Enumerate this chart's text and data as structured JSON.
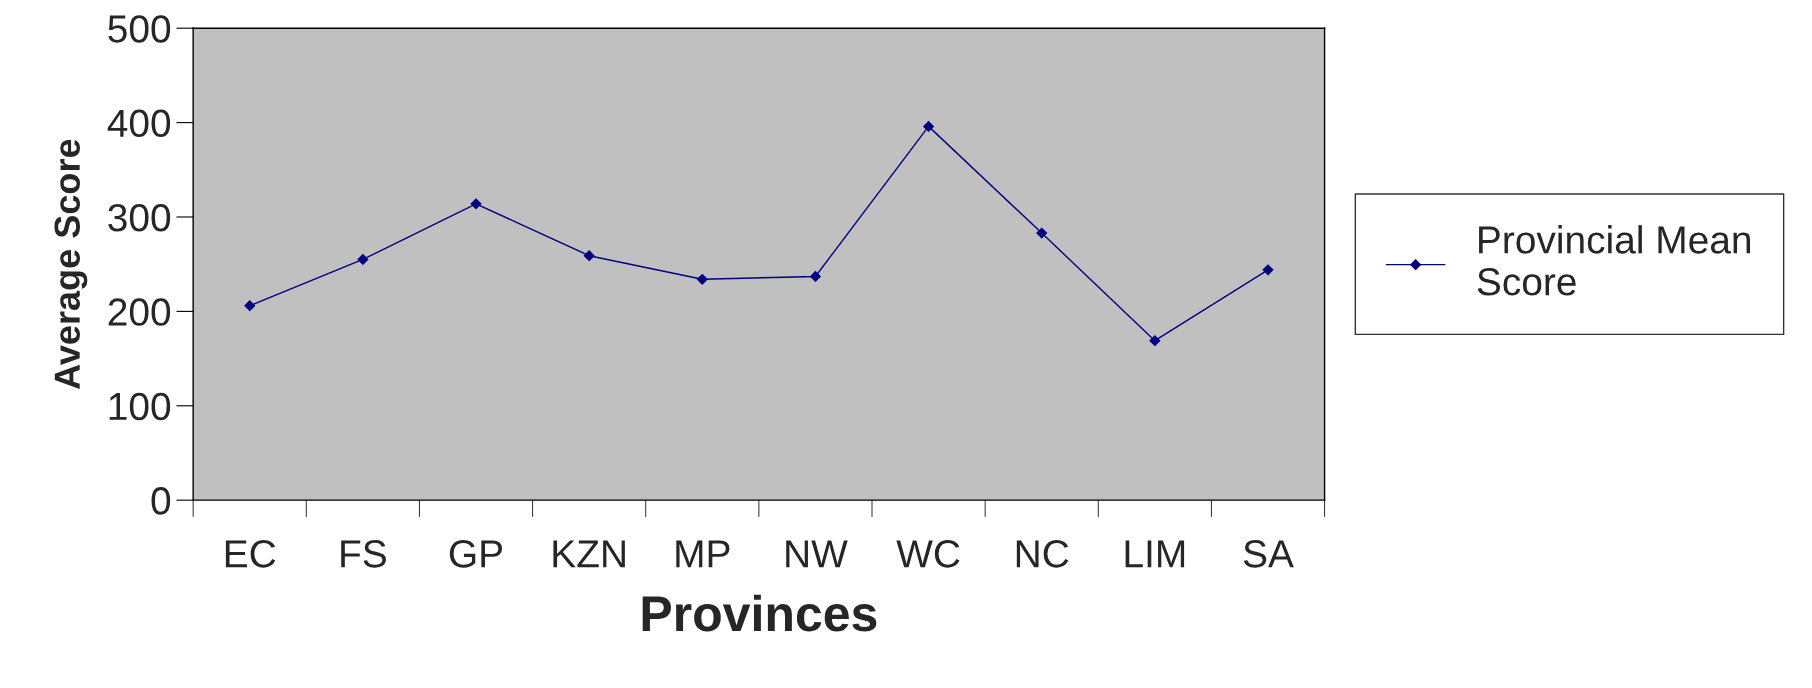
{
  "chart_data": {
    "type": "line",
    "xlabel": "Provinces",
    "ylabel": "Average Score",
    "categories": [
      "EC",
      "FS",
      "GP",
      "KZN",
      "MP",
      "NW",
      "WC",
      "NC",
      "LIM",
      "SA"
    ],
    "series": [
      {
        "name": "Provincial Mean Score",
        "color": "#000080",
        "values": [
          206,
          255,
          314,
          259,
          234,
          237,
          396,
          283,
          169,
          244
        ]
      }
    ],
    "ylim": [
      0,
      500
    ],
    "yticks": [
      0,
      100,
      200,
      300,
      400,
      500
    ],
    "grid": false,
    "legend": "right",
    "marker": "diamond",
    "line_style": "solid"
  }
}
